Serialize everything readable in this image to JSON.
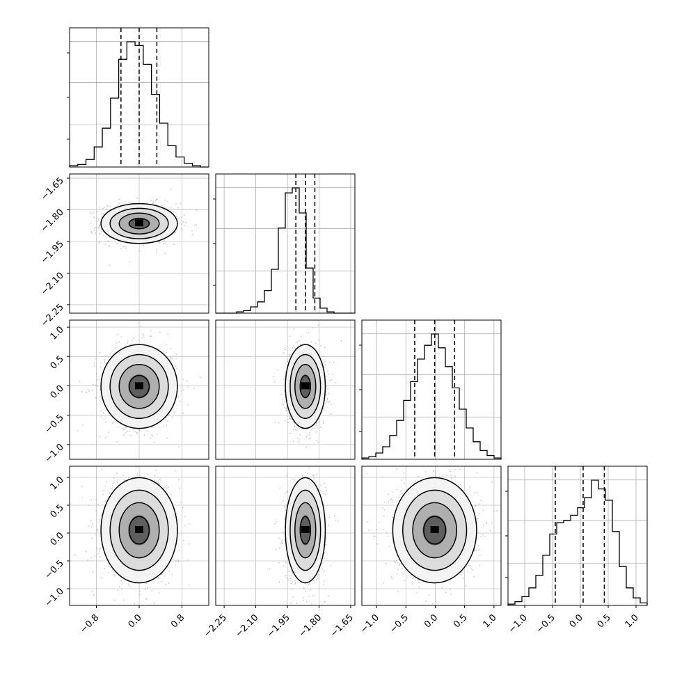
{
  "chart_data": {
    "type": "corner",
    "parameters": 4,
    "axes": [
      {
        "range": [
          -1.3,
          1.3
        ],
        "ticks": [
          "−0.8",
          "0.0",
          "0.8"
        ],
        "tick_values": [
          -0.8,
          0.0,
          0.8
        ]
      },
      {
        "range": [
          -2.29,
          -1.63
        ],
        "ticks": [
          "−1.65",
          "−1.80",
          "−1.95",
          "−2.10",
          "−2.25"
        ],
        "tick_values": [
          -1.65,
          -1.8,
          -1.95,
          -2.1,
          -2.25
        ]
      },
      {
        "range": [
          -1.25,
          1.12
        ],
        "ticks": [
          "1.0",
          "0.5",
          "0.0",
          "−0.5",
          "−1.0"
        ],
        "tick_values": [
          1.0,
          0.5,
          0.0,
          -0.5,
          -1.0
        ]
      },
      {
        "range": [
          -1.3,
          1.2
        ],
        "ticks": [
          "1.0",
          "0.5",
          "0.0",
          "−0.5",
          "−1.0"
        ],
        "tick_values": [
          1.0,
          0.5,
          0.0,
          -0.5,
          -1.0
        ]
      }
    ],
    "bottom_ticks": [
      {
        "labels": [
          "−0.8",
          "0.0",
          "0.8"
        ],
        "values": [
          -0.8,
          0.0,
          0.8
        ]
      },
      {
        "labels": [
          "−2.25",
          "−2.10",
          "−1.95",
          "−1.80",
          "−1.65"
        ],
        "values": [
          -2.25,
          -2.1,
          -1.95,
          -1.8,
          -1.65
        ]
      },
      {
        "labels": [
          "−1.0",
          "−0.5",
          "0.0",
          "0.5",
          "1.0"
        ],
        "values": [
          -1.0,
          -0.5,
          0.0,
          0.5,
          1.0
        ]
      },
      {
        "labels": [
          "−1.0",
          "−0.5",
          "0.0",
          "0.5",
          "1.0"
        ],
        "values": [
          -1.0,
          -0.5,
          0.0,
          0.5,
          1.0
        ]
      }
    ],
    "diagonal": [
      {
        "bins": [
          -1.3,
          1.3
        ],
        "counts": [
          1,
          2,
          6,
          16,
          31,
          55,
          86,
          100,
          97,
          82,
          58,
          35,
          17,
          8,
          3,
          1,
          0
        ],
        "quantiles": [
          -0.34,
          0.0,
          0.33
        ]
      },
      {
        "bins": [
          -2.29,
          -1.63
        ],
        "counts": [
          0,
          0,
          0,
          1,
          2,
          5,
          9,
          18,
          35,
          68,
          96,
          100,
          80,
          36,
          12,
          4,
          1,
          0,
          0,
          0
        ],
        "quantiles": [
          -1.91,
          -1.865,
          -1.82
        ]
      },
      {
        "bins": [
          -1.25,
          1.12
        ],
        "counts": [
          1,
          2,
          5,
          10,
          19,
          31,
          47,
          62,
          80,
          91,
          100,
          89,
          74,
          57,
          40,
          25,
          14,
          7,
          3,
          1
        ],
        "quantiles": [
          -0.35,
          -0.01,
          0.33
        ]
      },
      {
        "bins": [
          -1.3,
          1.2
        ],
        "counts": [
          1,
          3,
          7,
          14,
          24,
          40,
          57,
          66,
          68,
          72,
          78,
          86,
          100,
          93,
          84,
          59,
          31,
          14,
          6,
          2
        ],
        "quantiles": [
          -0.45,
          0.05,
          0.43
        ]
      }
    ],
    "grid": true,
    "style": "histograms with dashed quantile lines, 2D panels with density contours and scatter points"
  }
}
